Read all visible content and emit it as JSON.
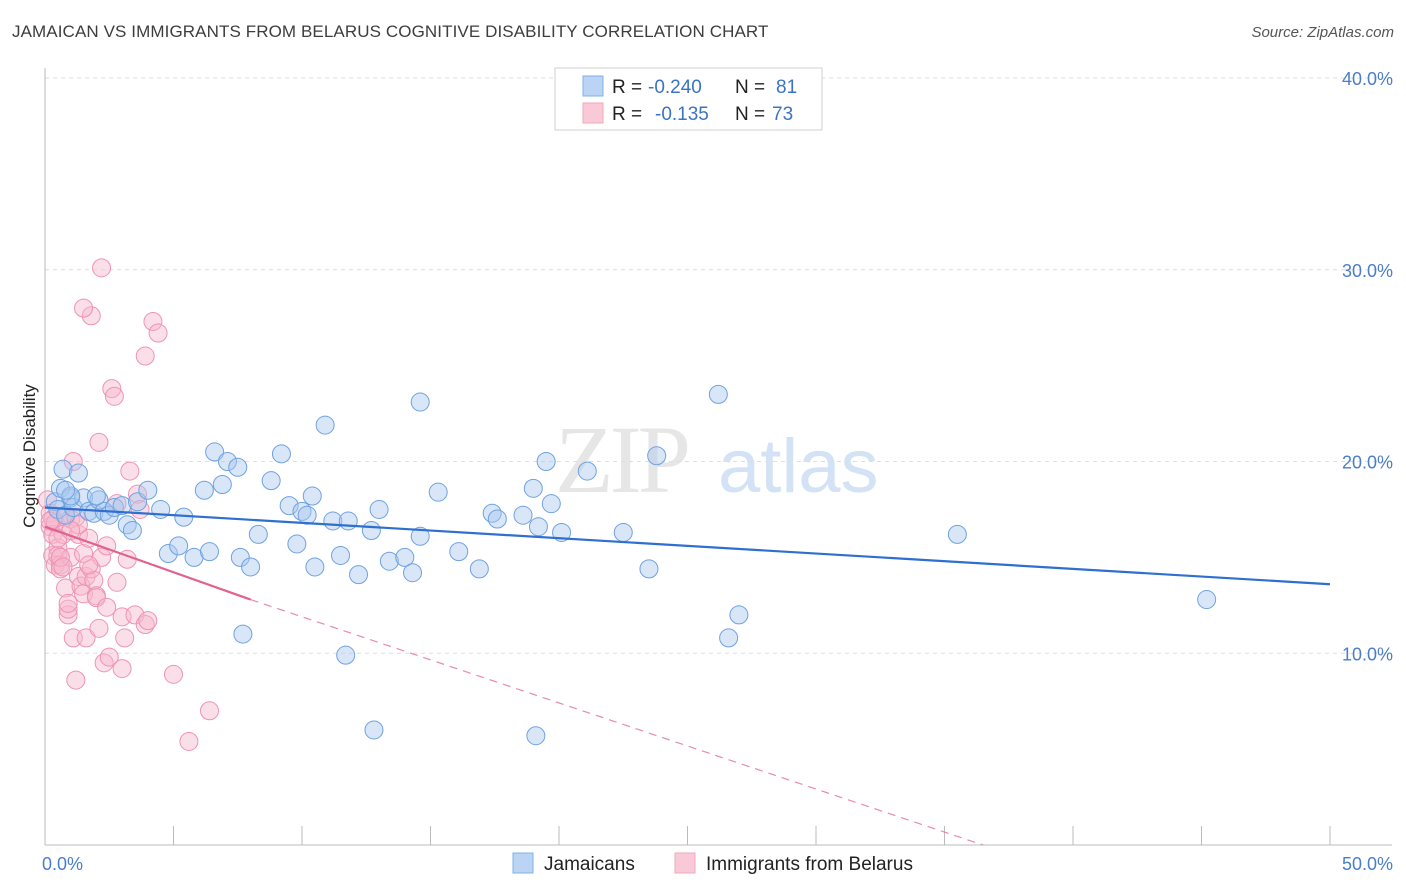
{
  "title": "JAMAICAN VS IMMIGRANTS FROM BELARUS COGNITIVE DISABILITY CORRELATION CHART",
  "source": "Source: ZipAtlas.com",
  "watermark": {
    "zip": "ZIP",
    "atlas": "atlas"
  },
  "colors": {
    "blue": "#7fb0e8",
    "blue_line": "#2e6fd0",
    "pink": "#f3a6c0",
    "pink_line": "#e0628f",
    "tick": "#4a7ec9",
    "grid": "#dcdcdc"
  },
  "legend": {
    "rows": [
      {
        "r_label": "R =",
        "r_value": "-0.240",
        "n_label": "N =",
        "n_value": "81"
      },
      {
        "r_label": "R =",
        "r_value": "-0.135",
        "n_label": "N =",
        "n_value": "73"
      }
    ]
  },
  "chart_data": {
    "type": "scatter",
    "title": "JAMAICAN VS IMMIGRANTS FROM BELARUS COGNITIVE DISABILITY CORRELATION CHART",
    "xlabel": "",
    "ylabel": "Cognitive Disability",
    "xlim": [
      0,
      50
    ],
    "ylim": [
      0,
      40
    ],
    "x_tick_labels": [
      "0.0%",
      "50.0%"
    ],
    "y_ticks": [
      10,
      20,
      30,
      40
    ],
    "y_tick_labels": [
      "10.0%",
      "20.0%",
      "30.0%",
      "40.0%"
    ],
    "series": [
      {
        "name": "Jamaicans",
        "color": "#7fb0e8",
        "trend": {
          "x": [
            0,
            50
          ],
          "y": [
            17.6,
            13.6
          ],
          "style": "solid"
        },
        "points": [
          [
            0.4,
            17.9
          ],
          [
            0.5,
            17.5
          ],
          [
            0.6,
            18.6
          ],
          [
            0.7,
            19.6
          ],
          [
            0.8,
            17.2
          ],
          [
            1.0,
            18.1
          ],
          [
            1.1,
            17.6
          ],
          [
            1.3,
            19.4
          ],
          [
            1.5,
            18.1
          ],
          [
            1.7,
            17.4
          ],
          [
            1.9,
            17.3
          ],
          [
            2.1,
            18.0
          ],
          [
            2.3,
            17.4
          ],
          [
            2.5,
            17.2
          ],
          [
            2.7,
            17.6
          ],
          [
            3.0,
            17.7
          ],
          [
            3.2,
            16.7
          ],
          [
            3.6,
            17.9
          ],
          [
            3.4,
            16.4
          ],
          [
            4.0,
            18.5
          ],
          [
            4.5,
            17.5
          ],
          [
            4.8,
            15.2
          ],
          [
            5.2,
            15.6
          ],
          [
            5.4,
            17.1
          ],
          [
            5.8,
            15.0
          ],
          [
            6.2,
            18.5
          ],
          [
            6.4,
            15.3
          ],
          [
            6.6,
            20.5
          ],
          [
            6.9,
            18.8
          ],
          [
            7.1,
            20.0
          ],
          [
            7.5,
            19.7
          ],
          [
            7.6,
            15.0
          ],
          [
            8.0,
            14.5
          ],
          [
            8.3,
            16.2
          ],
          [
            8.8,
            19.0
          ],
          [
            9.2,
            20.4
          ],
          [
            9.5,
            17.7
          ],
          [
            9.8,
            15.7
          ],
          [
            10.0,
            17.4
          ],
          [
            10.2,
            17.2
          ],
          [
            10.4,
            18.2
          ],
          [
            10.5,
            14.5
          ],
          [
            10.9,
            21.9
          ],
          [
            11.2,
            16.9
          ],
          [
            11.5,
            15.1
          ],
          [
            11.8,
            16.9
          ],
          [
            12.2,
            14.1
          ],
          [
            12.7,
            16.4
          ],
          [
            13.0,
            17.5
          ],
          [
            13.4,
            14.8
          ],
          [
            14.0,
            15.0
          ],
          [
            14.3,
            14.2
          ],
          [
            14.6,
            16.1
          ],
          [
            15.3,
            18.4
          ],
          [
            16.1,
            15.3
          ],
          [
            16.9,
            14.4
          ],
          [
            17.4,
            17.3
          ],
          [
            17.6,
            17.0
          ],
          [
            18.6,
            17.2
          ],
          [
            19.0,
            18.6
          ],
          [
            19.2,
            16.6
          ],
          [
            19.5,
            20.0
          ],
          [
            19.7,
            17.8
          ],
          [
            20.1,
            16.3
          ],
          [
            21.1,
            19.5
          ],
          [
            22.5,
            16.3
          ],
          [
            23.5,
            14.4
          ],
          [
            23.8,
            20.3
          ],
          [
            26.2,
            23.5
          ],
          [
            27.0,
            12.0
          ],
          [
            35.5,
            16.2
          ],
          [
            45.2,
            12.8
          ],
          [
            14.6,
            23.1
          ],
          [
            26.6,
            10.8
          ],
          [
            7.7,
            11.0
          ],
          [
            11.7,
            9.9
          ],
          [
            12.8,
            6.0
          ],
          [
            19.1,
            5.7
          ],
          [
            1.0,
            18.2
          ],
          [
            2.0,
            18.2
          ],
          [
            0.8,
            18.5
          ]
        ]
      },
      {
        "name": "Immigrants from Belarus",
        "color": "#f3a6c0",
        "trend": {
          "x": [
            0,
            8
          ],
          "y": [
            16.6,
            12.8
          ],
          "style": "solid",
          "extended_to": [
            36.5,
            0
          ],
          "extended_style": "dashed"
        },
        "points": [
          [
            0.1,
            18.0
          ],
          [
            0.2,
            17.3
          ],
          [
            0.2,
            16.6
          ],
          [
            0.3,
            17.0
          ],
          [
            0.3,
            16.2
          ],
          [
            0.3,
            15.1
          ],
          [
            0.4,
            14.6
          ],
          [
            0.4,
            16.8
          ],
          [
            0.5,
            15.5
          ],
          [
            0.5,
            15.1
          ],
          [
            0.6,
            14.6
          ],
          [
            0.6,
            14.4
          ],
          [
            0.7,
            16.2
          ],
          [
            0.8,
            17.1
          ],
          [
            0.8,
            13.4
          ],
          [
            0.9,
            12.0
          ],
          [
            0.9,
            12.3
          ],
          [
            1.0,
            17.0
          ],
          [
            1.0,
            15.0
          ],
          [
            1.1,
            20.0
          ],
          [
            1.1,
            10.8
          ],
          [
            1.2,
            8.6
          ],
          [
            1.3,
            16.2
          ],
          [
            1.3,
            14.0
          ],
          [
            1.4,
            13.5
          ],
          [
            1.5,
            13.1
          ],
          [
            1.5,
            15.2
          ],
          [
            1.6,
            14.0
          ],
          [
            1.6,
            10.8
          ],
          [
            1.7,
            16.0
          ],
          [
            1.8,
            27.6
          ],
          [
            1.8,
            14.4
          ],
          [
            1.9,
            13.8
          ],
          [
            2.0,
            13.0
          ],
          [
            2.0,
            12.9
          ],
          [
            2.1,
            21.0
          ],
          [
            2.1,
            11.3
          ],
          [
            2.2,
            15.0
          ],
          [
            2.2,
            30.1
          ],
          [
            2.3,
            9.5
          ],
          [
            2.4,
            12.4
          ],
          [
            2.5,
            9.8
          ],
          [
            2.6,
            23.8
          ],
          [
            2.7,
            23.4
          ],
          [
            2.8,
            17.8
          ],
          [
            3.0,
            9.2
          ],
          [
            3.0,
            11.9
          ],
          [
            3.1,
            10.8
          ],
          [
            3.2,
            14.9
          ],
          [
            3.3,
            19.5
          ],
          [
            3.5,
            12.0
          ],
          [
            3.6,
            18.3
          ],
          [
            3.7,
            17.5
          ],
          [
            3.9,
            11.5
          ],
          [
            4.0,
            11.7
          ],
          [
            3.9,
            25.5
          ],
          [
            4.2,
            27.3
          ],
          [
            4.4,
            26.7
          ],
          [
            5.0,
            8.9
          ],
          [
            5.6,
            5.4
          ],
          [
            6.4,
            7.0
          ],
          [
            1.5,
            28.0
          ],
          [
            0.5,
            16.0
          ],
          [
            0.6,
            15.0
          ],
          [
            0.7,
            14.5
          ],
          [
            0.2,
            16.9
          ],
          [
            1.2,
            17.1
          ],
          [
            1.3,
            16.7
          ],
          [
            2.8,
            13.7
          ],
          [
            1.7,
            14.6
          ],
          [
            0.9,
            12.6
          ],
          [
            1.0,
            16.4
          ],
          [
            2.4,
            15.6
          ]
        ]
      }
    ],
    "legend_position": "top-center"
  },
  "bottom_legend": [
    "Jamaicans",
    "Immigrants from Belarus"
  ]
}
